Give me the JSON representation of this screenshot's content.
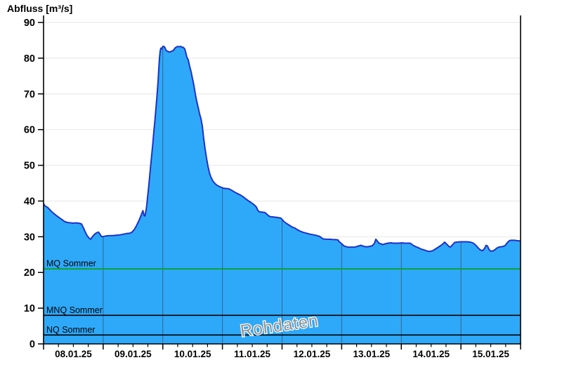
{
  "title": "Abfluss [m³/s]",
  "watermark": "Rohdaten",
  "colors": {
    "area_fill": "#2EA9F9",
    "area_stroke": "#1E32C8",
    "h_grid": "#EAEAEA",
    "day_grid_on_fill": "#35648C",
    "axis": "#000000",
    "mq_line": "#0CA135",
    "low_line": "#000000",
    "watermark_fill": "#909090",
    "watermark_halo": "#FFFFFF",
    "background": "#FFFFFF"
  },
  "chart_data": {
    "type": "area",
    "title": "Abfluss [m³/s]",
    "ylabel": "Abfluss [m³/s]",
    "xlabel": "",
    "ylim": [
      0,
      90
    ],
    "y_ticks": [
      0,
      10,
      20,
      30,
      40,
      50,
      60,
      70,
      80,
      90
    ],
    "x_tick_labels": [
      "08.01.25",
      "09.01.25",
      "10.01.25",
      "11.01.25",
      "12.01.25",
      "13.01.25",
      "14.01.25",
      "15.01.25"
    ],
    "x_range_days": [
      0,
      8
    ],
    "minor_ticks_per_day": 4,
    "grid": true,
    "legend_position": "none",
    "reference_lines": [
      {
        "label": "MQ Sommer",
        "value": 21,
        "color": "#0CA135"
      },
      {
        "label": "MNQ Sommer",
        "value": 8,
        "color": "#000000"
      },
      {
        "label": "NQ Sommer",
        "value": 2.5,
        "color": "#000000"
      }
    ],
    "series": [
      {
        "name": "Abfluss Rohdaten",
        "units": "m³/s",
        "points": [
          [
            0,
            39.3
          ],
          [
            0.02,
            38.7
          ],
          [
            0.07,
            38.2
          ],
          [
            0.12,
            37.3
          ],
          [
            0.165,
            36.6
          ],
          [
            0.21,
            36.0
          ],
          [
            0.26,
            35.4
          ],
          [
            0.31,
            34.8
          ],
          [
            0.35,
            34.3
          ],
          [
            0.4,
            34.0
          ],
          [
            0.45,
            33.9
          ],
          [
            0.5,
            33.8
          ],
          [
            0.54,
            33.9
          ],
          [
            0.59,
            33.8
          ],
          [
            0.635,
            33.6
          ],
          [
            0.66,
            32.8
          ],
          [
            0.695,
            31.5
          ],
          [
            0.73,
            30.3
          ],
          [
            0.765,
            29.6
          ],
          [
            0.79,
            29.3
          ],
          [
            0.81,
            29.8
          ],
          [
            0.85,
            30.6
          ],
          [
            0.88,
            31.0
          ],
          [
            0.92,
            31.3
          ],
          [
            0.94,
            30.9
          ],
          [
            0.965,
            30.2
          ],
          [
            0.99,
            30.0
          ],
          [
            1.04,
            30.2
          ],
          [
            1.1,
            30.3
          ],
          [
            1.155,
            30.3
          ],
          [
            1.21,
            30.4
          ],
          [
            1.27,
            30.5
          ],
          [
            1.33,
            30.7
          ],
          [
            1.39,
            30.9
          ],
          [
            1.45,
            31.0
          ],
          [
            1.485,
            31.3
          ],
          [
            1.52,
            32.0
          ],
          [
            1.555,
            33.0
          ],
          [
            1.59,
            34.2
          ],
          [
            1.625,
            35.5
          ],
          [
            1.65,
            36.6
          ],
          [
            1.667,
            37.3
          ],
          [
            1.685,
            36.0
          ],
          [
            1.7,
            35.8
          ],
          [
            1.72,
            37.5
          ],
          [
            1.732,
            39.0
          ],
          [
            1.744,
            41.0
          ],
          [
            1.76,
            43.5
          ],
          [
            1.78,
            47.0
          ],
          [
            1.797,
            50.0
          ],
          [
            1.815,
            53.0
          ],
          [
            1.832,
            56.0
          ],
          [
            1.85,
            59.5
          ],
          [
            1.868,
            62.5
          ],
          [
            1.885,
            66.0
          ],
          [
            1.903,
            69.5
          ],
          [
            1.92,
            73.5
          ],
          [
            1.932,
            77.0
          ],
          [
            1.944,
            80.0
          ],
          [
            1.956,
            82.0
          ],
          [
            1.968,
            82.8
          ],
          [
            1.98,
            82.6
          ],
          [
            1.99,
            83.0
          ],
          [
            2.003,
            83.3
          ],
          [
            2.02,
            83.3
          ],
          [
            2.038,
            82.9
          ],
          [
            2.05,
            82.3
          ],
          [
            2.068,
            82.0
          ],
          [
            2.086,
            81.9
          ],
          [
            2.11,
            81.7
          ],
          [
            2.133,
            81.8
          ],
          [
            2.156,
            82.0
          ],
          [
            2.18,
            82.2
          ],
          [
            2.203,
            82.8
          ],
          [
            2.227,
            83.1
          ],
          [
            2.25,
            83.3
          ],
          [
            2.274,
            83.2
          ],
          [
            2.3,
            83.3
          ],
          [
            2.32,
            83.1
          ],
          [
            2.345,
            83.0
          ],
          [
            2.368,
            82.6
          ],
          [
            2.386,
            81.5
          ],
          [
            2.404,
            80.3
          ],
          [
            2.427,
            79.5
          ],
          [
            2.45,
            77.8
          ],
          [
            2.474,
            76.2
          ],
          [
            2.498,
            74.3
          ],
          [
            2.52,
            72.5
          ],
          [
            2.545,
            70.0
          ],
          [
            2.568,
            68.0
          ],
          [
            2.592,
            66.3
          ],
          [
            2.616,
            64.5
          ],
          [
            2.64,
            63.0
          ],
          [
            2.663,
            61.0
          ],
          [
            2.686,
            57.5
          ],
          [
            2.71,
            54.5
          ],
          [
            2.733,
            52.0
          ],
          [
            2.757,
            49.8
          ],
          [
            2.78,
            48.0
          ],
          [
            2.804,
            46.8
          ],
          [
            2.84,
            45.6
          ],
          [
            2.875,
            44.9
          ],
          [
            2.91,
            44.4
          ],
          [
            2.945,
            44.1
          ],
          [
            2.97,
            43.9
          ],
          [
            3.016,
            43.6
          ],
          [
            3.063,
            43.5
          ],
          [
            3.11,
            43.4
          ],
          [
            3.158,
            43.0
          ],
          [
            3.205,
            42.5
          ],
          [
            3.252,
            42.1
          ],
          [
            3.3,
            41.7
          ],
          [
            3.346,
            41.2
          ],
          [
            3.393,
            40.6
          ],
          [
            3.44,
            40.0
          ],
          [
            3.487,
            39.5
          ],
          [
            3.535,
            38.9
          ],
          [
            3.57,
            38.3
          ],
          [
            3.593,
            37.4
          ],
          [
            3.617,
            37.0
          ],
          [
            3.664,
            36.9
          ],
          [
            3.711,
            36.8
          ],
          [
            3.747,
            36.3
          ],
          [
            3.77,
            35.9
          ],
          [
            3.805,
            35.6
          ],
          [
            3.864,
            35.5
          ],
          [
            3.923,
            35.4
          ],
          [
            3.982,
            35.2
          ],
          [
            4.029,
            34.3
          ],
          [
            4.077,
            33.7
          ],
          [
            4.124,
            33.2
          ],
          [
            4.171,
            32.7
          ],
          [
            4.218,
            32.4
          ],
          [
            4.265,
            31.9
          ],
          [
            4.312,
            31.5
          ],
          [
            4.359,
            31.2
          ],
          [
            4.406,
            31.0
          ],
          [
            4.454,
            30.8
          ],
          [
            4.512,
            30.6
          ],
          [
            4.571,
            30.4
          ],
          [
            4.63,
            30.1
          ],
          [
            4.689,
            29.4
          ],
          [
            4.748,
            29.3
          ],
          [
            4.807,
            29.3
          ],
          [
            4.854,
            29.2
          ],
          [
            4.901,
            29.2
          ],
          [
            4.937,
            29.1
          ],
          [
            4.96,
            28.6
          ],
          [
            4.996,
            28.1
          ],
          [
            5.043,
            27.4
          ],
          [
            5.102,
            27.1
          ],
          [
            5.161,
            27.1
          ],
          [
            5.22,
            27.1
          ],
          [
            5.278,
            27.4
          ],
          [
            5.326,
            27.6
          ],
          [
            5.373,
            27.3
          ],
          [
            5.42,
            27.2
          ],
          [
            5.467,
            27.3
          ],
          [
            5.514,
            27.5
          ],
          [
            5.55,
            28.2
          ],
          [
            5.573,
            29.3
          ],
          [
            5.597,
            28.8
          ],
          [
            5.62,
            28.3
          ],
          [
            5.656,
            28.0
          ],
          [
            5.691,
            27.8
          ],
          [
            5.726,
            28.0
          ],
          [
            5.773,
            28.2
          ],
          [
            5.821,
            28.3
          ],
          [
            5.868,
            28.2
          ],
          [
            5.915,
            28.2
          ],
          [
            5.95,
            28.2
          ],
          [
            6.009,
            28.3
          ],
          [
            6.056,
            28.2
          ],
          [
            6.103,
            28.2
          ],
          [
            6.15,
            28.2
          ],
          [
            6.197,
            27.6
          ],
          [
            6.245,
            27.2
          ],
          [
            6.292,
            26.9
          ],
          [
            6.339,
            26.5
          ],
          [
            6.386,
            26.3
          ],
          [
            6.433,
            26.0
          ],
          [
            6.48,
            25.9
          ],
          [
            6.527,
            26.1
          ],
          [
            6.574,
            26.6
          ],
          [
            6.622,
            27.1
          ],
          [
            6.669,
            27.6
          ],
          [
            6.704,
            28.1
          ],
          [
            6.727,
            28.5
          ],
          [
            6.763,
            27.9
          ],
          [
            6.798,
            27.3
          ],
          [
            6.822,
            27.1
          ],
          [
            6.857,
            27.7
          ],
          [
            6.892,
            28.4
          ],
          [
            6.928,
            28.5
          ],
          [
            6.987,
            28.6
          ],
          [
            7.045,
            28.6
          ],
          [
            7.104,
            28.6
          ],
          [
            7.163,
            28.5
          ],
          [
            7.21,
            28.2
          ],
          [
            7.258,
            27.5
          ],
          [
            7.293,
            26.8
          ],
          [
            7.328,
            26.3
          ],
          [
            7.364,
            26.1
          ],
          [
            7.399,
            26.8
          ],
          [
            7.422,
            27.6
          ],
          [
            7.446,
            27.4
          ],
          [
            7.47,
            26.5
          ],
          [
            7.493,
            26.0
          ],
          [
            7.529,
            26.0
          ],
          [
            7.564,
            26.3
          ],
          [
            7.599,
            26.8
          ],
          [
            7.634,
            27.1
          ],
          [
            7.67,
            27.2
          ],
          [
            7.705,
            27.3
          ],
          [
            7.74,
            27.5
          ],
          [
            7.776,
            28.3
          ],
          [
            7.811,
            28.9
          ],
          [
            7.846,
            29.0
          ],
          [
            7.894,
            29.0
          ],
          [
            7.941,
            28.9
          ],
          [
            8.0,
            28.8
          ]
        ]
      }
    ]
  }
}
